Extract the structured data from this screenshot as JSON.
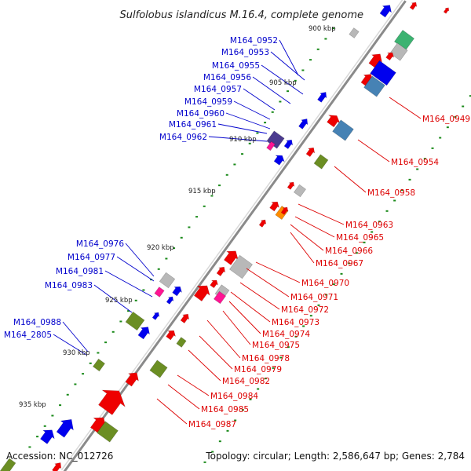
{
  "title": "Sulfolobus islandicus M.16.4, complete genome",
  "footer": {
    "accession": "Accession: NC_012726",
    "topology": "Topology: circular; Length: 2,586,647 bp; Genes: 2,784"
  },
  "colors": {
    "backbone": "#8a8a8a",
    "tick": "#1a8a1a",
    "forward_label": "#0000cc",
    "reverse_label": "#dd0000",
    "forward_gene": "#0000ee",
    "reverse_gene": "#ee0000",
    "olive_gene": "#6b8e23",
    "gray_gene": "#b8b8b8",
    "steel_gene": "#4682b4",
    "purple_gene": "#4b3b8f",
    "magenta_gene": "#ff1493",
    "orange_gene": "#ff8c00",
    "teal_gene": "#3cb371"
  },
  "kbp_labels": [
    "900 kbp",
    "905 kbp",
    "910 kbp",
    "915 kbp",
    "920 kbp",
    "925 kbp",
    "930 kbp",
    "935 kbp"
  ],
  "forward_labels": [
    "M164_0952",
    "M164_0953",
    "M164_0955",
    "M164_0956",
    "M164_0957",
    "M164_0959",
    "M164_0960",
    "M164_0961",
    "M164_0962",
    "M164_0976",
    "M164_0977",
    "M164_0981",
    "M164_0983",
    "M164_0988",
    "M164_2805"
  ],
  "reverse_labels": [
    "M164_0949",
    "M164_0954",
    "M164_0958",
    "M164_0963",
    "M164_0965",
    "M164_0966",
    "M164_0967",
    "M164_0970",
    "M164_0971",
    "M164_0972",
    "M164_0973",
    "M164_0974",
    "M164_0975",
    "M164_0978",
    "M164_0979",
    "M164_0982",
    "M164_0984",
    "M164_0985",
    "M164_0987"
  ]
}
